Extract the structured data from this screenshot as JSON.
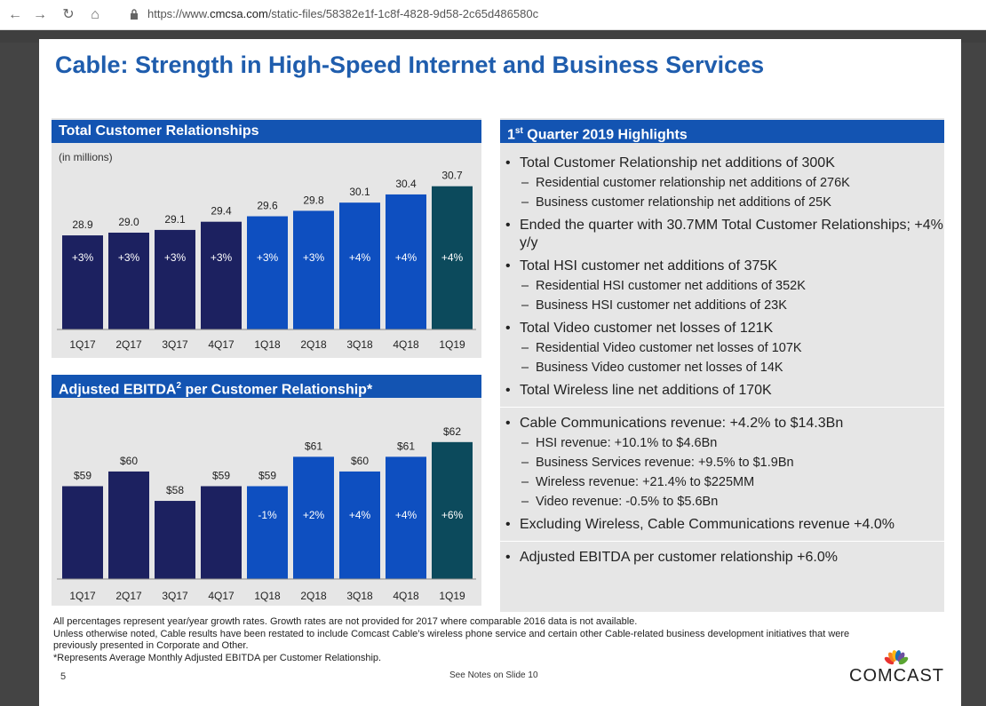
{
  "browser": {
    "url_prefix": "https://www.",
    "url_domain": "cmcsa.com",
    "url_path": "/static-files/58382e1f-1c8f-4828-9d58-2c65d486580c",
    "back": "←",
    "forward": "→",
    "reload": "↻",
    "home": "⌂"
  },
  "slide": {
    "title": "Cable: Strength in High-Speed Internet and Business Services",
    "page_number": "5",
    "notes": "See Notes on Slide 10",
    "logo_text": "COMCAST",
    "footnotes": [
      "All percentages represent year/year growth rates. Growth rates are not provided for 2017 where comparable 2016 data is not available.",
      "Unless otherwise noted, Cable results have been restated to include Comcast Cable’s wireless phone service and certain other Cable-related business development initiatives that were",
      "previously presented in Corporate and Other.",
      "*Represents Average Monthly Adjusted EBITDA per Customer Relationship."
    ]
  },
  "colors": {
    "header": "#1354b2",
    "dark_bar": "#1c2160",
    "blue_bar": "#0e4fc0",
    "teal_bar": "#0c4a5c",
    "panel": "#e6e6e6"
  },
  "chart_data": [
    {
      "type": "bar",
      "title": "Total Customer Relationships",
      "subtitle": "(in millions)",
      "categories": [
        "1Q17",
        "2Q17",
        "3Q17",
        "4Q17",
        "1Q18",
        "2Q18",
        "3Q18",
        "4Q18",
        "1Q19"
      ],
      "values": [
        28.9,
        29.0,
        29.1,
        29.4,
        29.6,
        29.8,
        30.1,
        30.4,
        30.7
      ],
      "value_labels": [
        "28.9",
        "29.0",
        "29.1",
        "29.4",
        "29.6",
        "29.8",
        "30.1",
        "30.4",
        "30.7"
      ],
      "growth_labels": [
        "+3%",
        "+3%",
        "+3%",
        "+3%",
        "+3%",
        "+3%",
        "+4%",
        "+4%",
        "+4%"
      ],
      "bar_colors": [
        "#1c2160",
        "#1c2160",
        "#1c2160",
        "#1c2160",
        "#0e4fc0",
        "#0e4fc0",
        "#0e4fc0",
        "#0e4fc0",
        "#0c4a5c"
      ],
      "ylim": [
        0,
        31
      ]
    },
    {
      "type": "bar",
      "title": "Adjusted EBITDA",
      "title_sup": "2",
      "title_suffix": " per Customer Relationship*",
      "categories": [
        "1Q17",
        "2Q17",
        "3Q17",
        "4Q17",
        "1Q18",
        "2Q18",
        "3Q18",
        "4Q18",
        "1Q19"
      ],
      "values": [
        59,
        60,
        58,
        59,
        59,
        61,
        60,
        61,
        62
      ],
      "value_labels": [
        "$59",
        "$60",
        "$58",
        "$59",
        "$59",
        "$61",
        "$60",
        "$61",
        "$62"
      ],
      "growth_labels": [
        "",
        "",
        "",
        "",
        "-1%",
        "+2%",
        "+4%",
        "+4%",
        "+6%"
      ],
      "bar_colors": [
        "#1c2160",
        "#1c2160",
        "#1c2160",
        "#1c2160",
        "#0e4fc0",
        "#0e4fc0",
        "#0e4fc0",
        "#0e4fc0",
        "#0c4a5c"
      ],
      "ylim": [
        0,
        63.5
      ]
    }
  ],
  "highlights": {
    "title_prefix": "1",
    "title_sup": "st",
    "title_suffix": " Quarter 2019 Highlights",
    "groups": [
      [
        {
          "text": "Total Customer Relationship net additions of 300K",
          "subs": [
            "Residential customer relationship net additions of 276K",
            "Business customer relationship net additions of 25K"
          ]
        },
        {
          "text": "Ended the quarter with 30.7MM Total Customer Relationships; +4% y/y",
          "subs": []
        },
        {
          "text": "Total HSI customer net additions of 375K",
          "subs": [
            "Residential HSI customer net additions of 352K",
            "Business HSI customer net additions of 23K"
          ]
        },
        {
          "text": "Total Video customer net losses of 121K",
          "subs": [
            "Residential Video customer net losses of 107K",
            "Business Video customer net losses of 14K"
          ]
        },
        {
          "text": "Total Wireless line net additions of 170K",
          "subs": []
        }
      ],
      [
        {
          "text": "Cable Communications revenue: +4.2% to $14.3Bn",
          "subs": [
            "HSI revenue: +10.1% to $4.6Bn",
            "Business Services revenue: +9.5% to $1.9Bn",
            "Wireless revenue: +21.4% to $225MM",
            "Video revenue: -0.5% to $5.6Bn"
          ]
        },
        {
          "text": "Excluding Wireless, Cable Communications revenue +4.0%",
          "subs": []
        }
      ],
      [
        {
          "text": "Adjusted EBITDA per customer relationship +6.0%",
          "subs": []
        }
      ]
    ]
  }
}
